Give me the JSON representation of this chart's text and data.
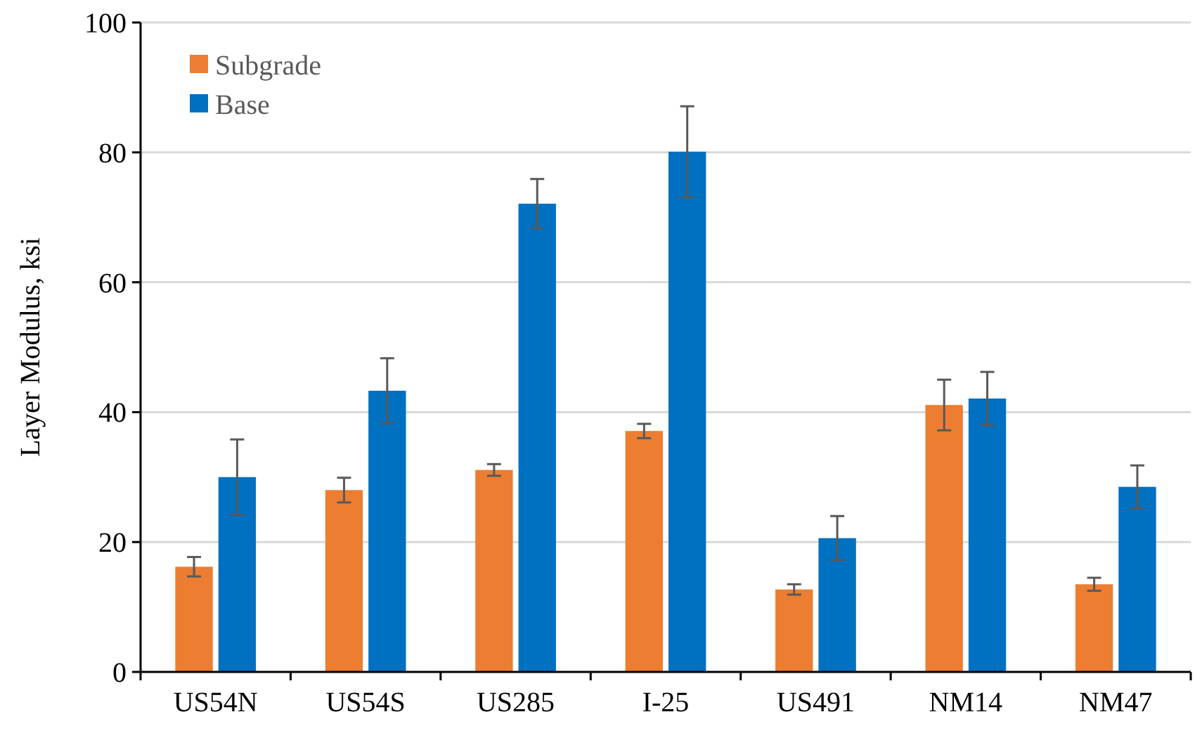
{
  "chart_data": {
    "type": "bar",
    "ylabel": "Layer Modulus, ksi",
    "categories": [
      "US54N",
      "US54S",
      "US285",
      "I-25",
      "US491",
      "NM14",
      "NM47"
    ],
    "series": [
      {
        "name": "Subgrade",
        "color": "#ed7d31",
        "values": [
          16.2,
          28,
          31.1,
          37.1,
          12.7,
          41.1,
          13.5
        ],
        "errors": [
          1.5,
          1.9,
          0.9,
          1.1,
          0.8,
          3.9,
          1
        ]
      },
      {
        "name": "Base",
        "color": "#0070c0",
        "values": [
          30,
          43.3,
          72.1,
          80.1,
          20.6,
          42.1,
          28.5
        ],
        "errors": [
          5.8,
          5,
          3.8,
          7,
          3.4,
          4.1,
          3.3
        ]
      }
    ],
    "ylim": [
      0,
      100
    ],
    "yticks": [
      0,
      20,
      40,
      60,
      80,
      100
    ],
    "grid": "y",
    "legend": "top left"
  }
}
